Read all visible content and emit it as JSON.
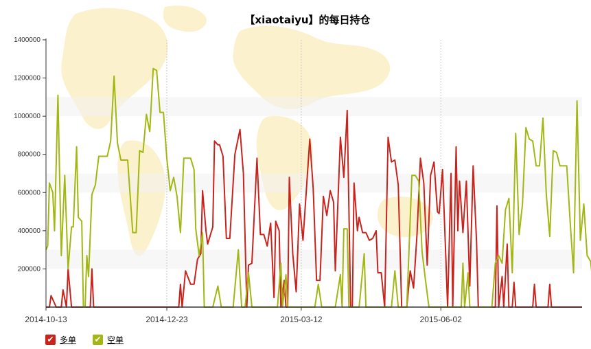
{
  "chart_data": {
    "type": "line",
    "title": "【xiaotaiyu】的每日持仓",
    "xlabel": "",
    "ylabel": "",
    "ylim": [
      0,
      1400000
    ],
    "yticks": [
      200000,
      400000,
      600000,
      800000,
      1000000,
      1200000,
      1400000
    ],
    "xlim": [
      "2014-10-13",
      "2015-08-24"
    ],
    "xticks": [
      "2014-10-13",
      "2014-12-23",
      "2015-03-12",
      "2015-06-02"
    ],
    "grid": true,
    "legend_position": "bottom-left",
    "series": [
      {
        "name": "多单",
        "color": "#c8231c",
        "points": [
          [
            "2014-10-13",
            0
          ],
          [
            "2014-10-15",
            0
          ],
          [
            "2014-10-16",
            60000
          ],
          [
            "2014-10-19",
            0
          ],
          [
            "2014-10-22",
            0
          ],
          [
            "2014-10-23",
            90000
          ],
          [
            "2014-10-25",
            0
          ],
          [
            "2014-10-26",
            200000
          ],
          [
            "2014-10-28",
            0
          ],
          [
            "2014-11-08",
            0
          ],
          [
            "2014-11-09",
            200000
          ],
          [
            "2014-11-10",
            0
          ],
          [
            "2014-11-11",
            0
          ],
          [
            "2014-12-30",
            0
          ],
          [
            "2014-12-31",
            120000
          ],
          [
            "2015-01-01",
            0
          ],
          [
            "2015-01-03",
            190000
          ],
          [
            "2015-01-06",
            120000
          ],
          [
            "2015-01-08",
            120000
          ],
          [
            "2015-01-10",
            250000
          ],
          [
            "2015-01-12",
            280000
          ],
          [
            "2015-01-13",
            610000
          ],
          [
            "2015-01-15",
            400000
          ],
          [
            "2015-01-16",
            330000
          ],
          [
            "2015-01-19",
            420000
          ],
          [
            "2015-01-20",
            870000
          ],
          [
            "2015-01-22",
            850000
          ],
          [
            "2015-01-23",
            850000
          ],
          [
            "2015-01-25",
            790000
          ],
          [
            "2015-01-27",
            360000
          ],
          [
            "2015-01-29",
            360000
          ],
          [
            "2015-02-01",
            800000
          ],
          [
            "2015-02-04",
            930000
          ],
          [
            "2015-02-06",
            700000
          ],
          [
            "2015-02-08",
            0
          ],
          [
            "2015-02-09",
            220000
          ],
          [
            "2015-02-11",
            230000
          ],
          [
            "2015-02-14",
            780000
          ],
          [
            "2015-02-16",
            380000
          ],
          [
            "2015-02-18",
            380000
          ],
          [
            "2015-02-20",
            320000
          ],
          [
            "2015-02-22",
            440000
          ],
          [
            "2015-02-24",
            50000
          ],
          [
            "2015-02-25",
            450000
          ],
          [
            "2015-02-27",
            400000
          ],
          [
            "2015-02-28",
            0
          ],
          [
            "2015-03-02",
            140000
          ],
          [
            "2015-03-03",
            0
          ],
          [
            "2015-03-04",
            0
          ],
          [
            "2015-03-05",
            680000
          ],
          [
            "2015-03-07",
            280000
          ],
          [
            "2015-03-09",
            80000
          ],
          [
            "2015-03-11",
            540000
          ],
          [
            "2015-03-13",
            350000
          ],
          [
            "2015-03-17",
            880000
          ],
          [
            "2015-03-19",
            620000
          ],
          [
            "2015-03-21",
            140000
          ],
          [
            "2015-03-23",
            140000
          ],
          [
            "2015-03-25",
            580000
          ],
          [
            "2015-03-27",
            480000
          ],
          [
            "2015-03-29",
            610000
          ],
          [
            "2015-03-31",
            550000
          ],
          [
            "2015-04-01",
            190000
          ],
          [
            "2015-04-04",
            890000
          ],
          [
            "2015-04-06",
            680000
          ],
          [
            "2015-04-08",
            1030000
          ],
          [
            "2015-04-10",
            0
          ],
          [
            "2015-04-11",
            0
          ],
          [
            "2015-04-12",
            650000
          ],
          [
            "2015-04-14",
            400000
          ],
          [
            "2015-04-15",
            470000
          ],
          [
            "2015-04-17",
            390000
          ],
          [
            "2015-04-19",
            390000
          ],
          [
            "2015-04-21",
            350000
          ],
          [
            "2015-04-23",
            360000
          ],
          [
            "2015-04-25",
            400000
          ],
          [
            "2015-04-26",
            180000
          ],
          [
            "2015-04-28",
            180000
          ],
          [
            "2015-04-30",
            0
          ],
          [
            "2015-05-02",
            890000
          ],
          [
            "2015-05-04",
            760000
          ],
          [
            "2015-05-06",
            770000
          ],
          [
            "2015-05-08",
            640000
          ],
          [
            "2015-05-10",
            0
          ],
          [
            "2015-05-13",
            0
          ],
          [
            "2015-05-15",
            190000
          ],
          [
            "2015-05-17",
            100000
          ],
          [
            "2015-05-19",
            380000
          ],
          [
            "2015-05-21",
            780000
          ],
          [
            "2015-05-23",
            650000
          ],
          [
            "2015-05-25",
            220000
          ],
          [
            "2015-05-27",
            690000
          ],
          [
            "2015-05-29",
            760000
          ],
          [
            "2015-05-31",
            500000
          ],
          [
            "2015-06-01",
            490000
          ],
          [
            "2015-06-03",
            720000
          ],
          [
            "2015-06-05",
            240000
          ],
          [
            "2015-06-06",
            0
          ],
          [
            "2015-06-08",
            700000
          ],
          [
            "2015-06-09",
            0
          ],
          [
            "2015-06-11",
            840000
          ],
          [
            "2015-06-12",
            400000
          ],
          [
            "2015-06-13",
            660000
          ],
          [
            "2015-06-15",
            390000
          ],
          [
            "2015-06-17",
            660000
          ],
          [
            "2015-06-19",
            110000
          ],
          [
            "2015-06-21",
            740000
          ],
          [
            "2015-06-23",
            340000
          ],
          [
            "2015-06-24",
            0
          ],
          [
            "2015-07-04",
            0
          ],
          [
            "2015-07-05",
            530000
          ],
          [
            "2015-07-06",
            0
          ],
          [
            "2015-07-08",
            160000
          ],
          [
            "2015-07-09",
            0
          ],
          [
            "2015-07-11",
            330000
          ],
          [
            "2015-07-12",
            0
          ],
          [
            "2015-07-14",
            0
          ],
          [
            "2015-07-15",
            130000
          ],
          [
            "2015-07-16",
            0
          ],
          [
            "2015-07-26",
            0
          ],
          [
            "2015-07-27",
            120000
          ],
          [
            "2015-07-28",
            0
          ],
          [
            "2015-08-04",
            0
          ],
          [
            "2015-08-05",
            120000
          ],
          [
            "2015-08-06",
            0
          ],
          [
            "2015-08-24",
            0
          ]
        ]
      },
      {
        "name": "空单",
        "color": "#a2b714",
        "points": [
          [
            "2014-10-13",
            300000
          ],
          [
            "2014-10-14",
            320000
          ],
          [
            "2014-10-15",
            650000
          ],
          [
            "2014-10-17",
            600000
          ],
          [
            "2014-10-18",
            400000
          ],
          [
            "2014-10-20",
            1110000
          ],
          [
            "2014-10-22",
            270000
          ],
          [
            "2014-10-24",
            690000
          ],
          [
            "2014-10-26",
            200000
          ],
          [
            "2014-10-28",
            420000
          ],
          [
            "2014-10-29",
            420000
          ],
          [
            "2014-10-31",
            840000
          ],
          [
            "2014-11-01",
            470000
          ],
          [
            "2014-11-03",
            450000
          ],
          [
            "2014-11-04",
            0
          ],
          [
            "2014-11-05",
            0
          ],
          [
            "2014-11-06",
            270000
          ],
          [
            "2014-11-07",
            160000
          ],
          [
            "2014-11-09",
            590000
          ],
          [
            "2014-11-11",
            640000
          ],
          [
            "2014-11-13",
            790000
          ],
          [
            "2014-11-16",
            790000
          ],
          [
            "2014-11-18",
            790000
          ],
          [
            "2014-11-20",
            870000
          ],
          [
            "2014-11-22",
            1210000
          ],
          [
            "2014-11-24",
            860000
          ],
          [
            "2014-11-26",
            770000
          ],
          [
            "2014-11-30",
            770000
          ],
          [
            "2014-12-03",
            390000
          ],
          [
            "2014-12-05",
            390000
          ],
          [
            "2014-12-07",
            820000
          ],
          [
            "2014-12-09",
            810000
          ],
          [
            "2014-12-11",
            1010000
          ],
          [
            "2014-12-13",
            920000
          ],
          [
            "2014-12-15",
            1250000
          ],
          [
            "2014-12-17",
            1240000
          ],
          [
            "2014-12-19",
            1020000
          ],
          [
            "2014-12-21",
            1020000
          ],
          [
            "2014-12-23",
            780000
          ],
          [
            "2014-12-25",
            610000
          ],
          [
            "2014-12-27",
            680000
          ],
          [
            "2014-12-29",
            580000
          ],
          [
            "2014-12-31",
            390000
          ],
          [
            "2015-01-02",
            780000
          ],
          [
            "2015-01-06",
            780000
          ],
          [
            "2015-01-08",
            720000
          ],
          [
            "2015-01-09",
            410000
          ],
          [
            "2015-01-11",
            270000
          ],
          [
            "2015-01-13",
            390000
          ],
          [
            "2015-01-14",
            0
          ],
          [
            "2015-01-19",
            0
          ],
          [
            "2015-01-22",
            110000
          ],
          [
            "2015-01-24",
            0
          ],
          [
            "2015-01-31",
            0
          ],
          [
            "2015-02-03",
            300000
          ],
          [
            "2015-02-05",
            0
          ],
          [
            "2015-02-07",
            0
          ],
          [
            "2015-02-09",
            180000
          ],
          [
            "2015-02-11",
            0
          ],
          [
            "2015-02-26",
            0
          ],
          [
            "2015-02-28",
            230000
          ],
          [
            "2015-03-01",
            0
          ],
          [
            "2015-03-03",
            170000
          ],
          [
            "2015-03-04",
            0
          ],
          [
            "2015-03-20",
            0
          ],
          [
            "2015-03-22",
            120000
          ],
          [
            "2015-03-24",
            0
          ],
          [
            "2015-04-01",
            0
          ],
          [
            "2015-04-04",
            170000
          ],
          [
            "2015-04-05",
            0
          ],
          [
            "2015-04-06",
            410000
          ],
          [
            "2015-04-08",
            410000
          ],
          [
            "2015-04-09",
            0
          ],
          [
            "2015-04-15",
            0
          ],
          [
            "2015-04-18",
            280000
          ],
          [
            "2015-04-19",
            0
          ],
          [
            "2015-05-04",
            0
          ],
          [
            "2015-05-06",
            190000
          ],
          [
            "2015-05-08",
            0
          ],
          [
            "2015-05-13",
            0
          ],
          [
            "2015-05-16",
            690000
          ],
          [
            "2015-05-18",
            690000
          ],
          [
            "2015-05-20",
            660000
          ],
          [
            "2015-05-22",
            290000
          ],
          [
            "2015-05-24",
            140000
          ],
          [
            "2015-05-26",
            0
          ],
          [
            "2015-06-14",
            0
          ],
          [
            "2015-06-15",
            230000
          ],
          [
            "2015-06-16",
            0
          ],
          [
            "2015-06-18",
            180000
          ],
          [
            "2015-06-19",
            0
          ],
          [
            "2015-07-02",
            0
          ],
          [
            "2015-07-04",
            230000
          ],
          [
            "2015-07-06",
            270000
          ],
          [
            "2015-07-08",
            230000
          ],
          [
            "2015-07-10",
            510000
          ],
          [
            "2015-07-12",
            570000
          ],
          [
            "2015-07-14",
            180000
          ],
          [
            "2015-07-16",
            910000
          ],
          [
            "2015-07-18",
            380000
          ],
          [
            "2015-07-20",
            540000
          ],
          [
            "2015-07-22",
            940000
          ],
          [
            "2015-07-24",
            880000
          ],
          [
            "2015-07-26",
            870000
          ],
          [
            "2015-07-28",
            740000
          ],
          [
            "2015-07-30",
            740000
          ],
          [
            "2015-08-01",
            990000
          ],
          [
            "2015-08-03",
            590000
          ],
          [
            "2015-08-05",
            370000
          ],
          [
            "2015-08-07",
            820000
          ],
          [
            "2015-08-09",
            810000
          ],
          [
            "2015-08-11",
            740000
          ],
          [
            "2015-08-13",
            740000
          ],
          [
            "2015-08-15",
            740000
          ],
          [
            "2015-08-17",
            450000
          ],
          [
            "2015-08-19",
            180000
          ],
          [
            "2015-08-21",
            1080000
          ],
          [
            "2015-08-23",
            350000
          ],
          [
            "2015-08-25",
            540000
          ],
          [
            "2015-08-27",
            270000
          ],
          [
            "2015-08-29",
            240000
          ],
          [
            "2015-08-31",
            70000
          ]
        ]
      }
    ]
  },
  "legend": {
    "items": [
      {
        "label": "多单",
        "color": "#c8231c",
        "icon": "check-icon"
      },
      {
        "label": "空单",
        "color": "#a2b714",
        "icon": "check-icon"
      }
    ]
  }
}
